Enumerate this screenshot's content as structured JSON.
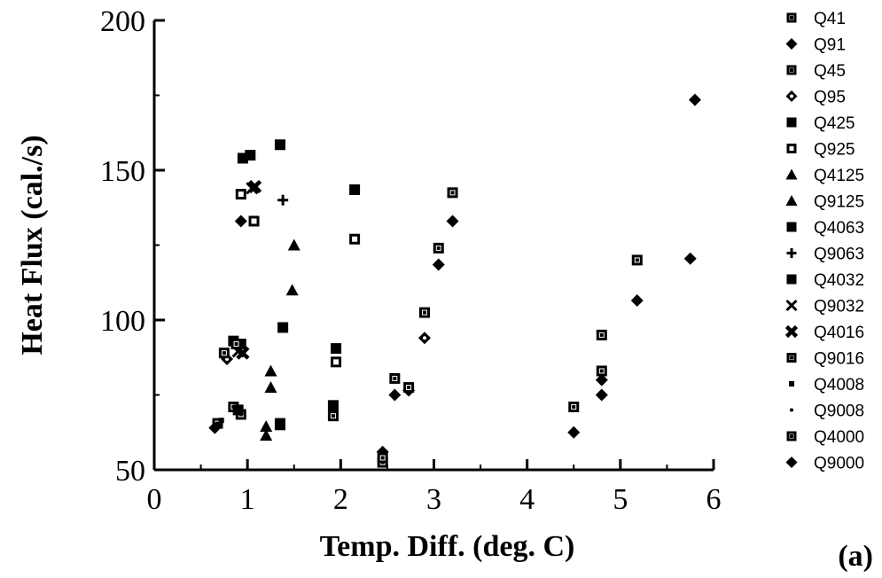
{
  "chart_data": {
    "type": "scatter",
    "xlabel": "Temp. Diff. (deg. C)",
    "ylabel": "Heat Flux (cal./s)",
    "panel_label": "(a)",
    "xlim": [
      0,
      6
    ],
    "ylim": [
      50,
      200
    ],
    "xticks": [
      0,
      1,
      2,
      3,
      4,
      5,
      6
    ],
    "yticks": [
      50,
      100,
      150,
      200
    ],
    "grid": false,
    "legend_position": "right",
    "series": [
      {
        "name": "Q41",
        "marker": "square-dot",
        "points": [
          [
            0.68,
            65.5
          ],
          [
            1.35,
            65.0
          ],
          [
            2.45,
            52.5
          ],
          [
            2.58,
            80.5
          ],
          [
            3.05,
            124.0
          ]
        ]
      },
      {
        "name": "Q91",
        "marker": "diamond",
        "points": [
          [
            0.65,
            64.0
          ],
          [
            0.93,
            133.0
          ],
          [
            2.45,
            56.0
          ],
          [
            2.58,
            75.0
          ],
          [
            3.05,
            118.5
          ]
        ]
      },
      {
        "name": "Q45",
        "marker": "square-dot",
        "points": [
          [
            0.85,
            71.0
          ],
          [
            0.93,
            68.5
          ],
          [
            1.92,
            68.0
          ],
          [
            2.45,
            54.0
          ],
          [
            2.9,
            102.5
          ]
        ]
      },
      {
        "name": "Q95",
        "marker": "diamond-dot",
        "points": [
          [
            0.78,
            87.0
          ],
          [
            2.73,
            76.5
          ],
          [
            2.9,
            94.0
          ]
        ]
      },
      {
        "name": "Q425",
        "marker": "square",
        "points": [
          [
            0.9,
            70.0
          ],
          [
            1.38,
            97.5
          ],
          [
            1.95,
            90.5
          ],
          [
            2.15,
            143.5
          ]
        ]
      },
      {
        "name": "Q925",
        "marker": "square-open",
        "points": [
          [
            0.93,
            142.0
          ],
          [
            1.07,
            133.0
          ],
          [
            1.95,
            86.0
          ],
          [
            2.15,
            127.0
          ]
        ]
      },
      {
        "name": "Q4125",
        "marker": "triangle",
        "points": [
          [
            1.2,
            61.5
          ],
          [
            1.25,
            83.0
          ],
          [
            1.48,
            110.0
          ]
        ]
      },
      {
        "name": "Q9125",
        "marker": "triangle",
        "points": [
          [
            1.2,
            64.5
          ],
          [
            1.25,
            77.5
          ],
          [
            1.5,
            125.0
          ]
        ]
      },
      {
        "name": "Q4063",
        "marker": "square",
        "points": [
          [
            0.95,
            154.0
          ],
          [
            1.03,
            155.0
          ],
          [
            1.35,
            158.5
          ]
        ]
      },
      {
        "name": "Q9063",
        "marker": "plus",
        "points": [
          [
            1.38,
            140.0
          ]
        ]
      },
      {
        "name": "Q4032",
        "marker": "square",
        "points": [
          [
            0.85,
            93.0
          ],
          [
            0.93,
            92.0
          ],
          [
            1.35,
            65.5
          ],
          [
            1.92,
            71.5
          ]
        ]
      },
      {
        "name": "Q9032",
        "marker": "x",
        "points": [
          [
            0.9,
            89.5
          ],
          [
            1.05,
            144.0
          ]
        ]
      },
      {
        "name": "Q4016",
        "marker": "x-bold",
        "points": [
          [
            0.95,
            89.0
          ],
          [
            1.08,
            144.5
          ]
        ]
      },
      {
        "name": "Q9016",
        "marker": "square-dot",
        "points": [
          [
            0.75,
            89.0
          ],
          [
            0.88,
            92.0
          ],
          [
            2.73,
            77.5
          ],
          [
            3.2,
            142.5
          ]
        ]
      },
      {
        "name": "Q4008",
        "marker": "small-square",
        "points": [
          [
            0.72,
            66.5
          ]
        ]
      },
      {
        "name": "Q9008",
        "marker": "dot",
        "points": [
          [
            0.7,
            65.0
          ]
        ]
      },
      {
        "name": "Q4000",
        "marker": "square-dot",
        "points": [
          [
            4.5,
            71.0
          ],
          [
            4.8,
            83.0
          ],
          [
            4.8,
            95.0
          ],
          [
            5.18,
            120.0
          ]
        ]
      },
      {
        "name": "Q9000",
        "marker": "diamond",
        "points": [
          [
            3.2,
            133.0
          ],
          [
            4.5,
            62.5
          ],
          [
            4.8,
            75.0
          ],
          [
            4.8,
            80.0
          ],
          [
            5.18,
            106.5
          ],
          [
            5.75,
            120.5
          ],
          [
            5.8,
            173.5
          ]
        ]
      }
    ]
  }
}
